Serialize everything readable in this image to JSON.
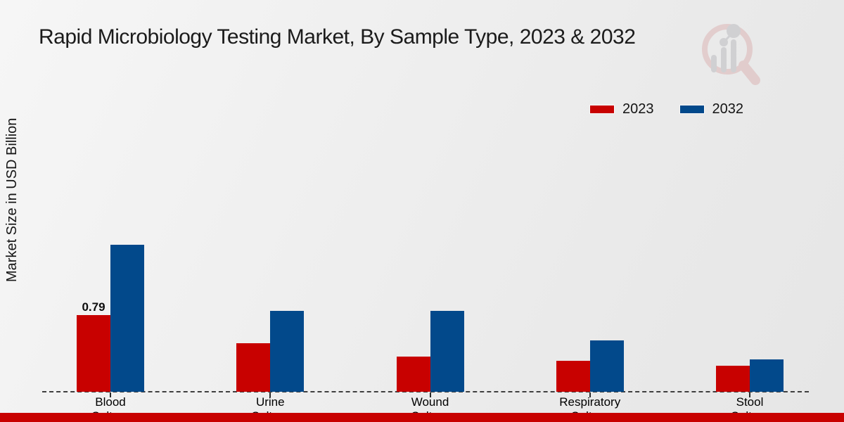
{
  "colors": {
    "series_2023": "#c80100",
    "series_2032": "#02498b",
    "bottom_strip": "#c80100",
    "baseline": "#3f3f3f"
  },
  "watermark_icon": "magnifier-bar-chart-logo",
  "chart_data": {
    "type": "bar",
    "title": "Rapid Microbiology Testing Market, By Sample Type, 2023 & 2032",
    "xlabel": "",
    "ylabel": "Market Size in USD Billion",
    "categories": [
      "Blood Culture",
      "Urine Culture",
      "Wound Culture",
      "Respiratory Culture",
      "Stool Culture"
    ],
    "category_lines": [
      [
        "Blood",
        "Culture"
      ],
      [
        "Urine",
        "Culture"
      ],
      [
        "Wound",
        "Culture"
      ],
      [
        "Respiratory",
        "Culture"
      ],
      [
        "Stool",
        "Culture"
      ]
    ],
    "series": [
      {
        "name": "2023",
        "color": "#c80100",
        "values": [
          0.79,
          0.5,
          0.36,
          0.32,
          0.27
        ]
      },
      {
        "name": "2032",
        "color": "#02498b",
        "values": [
          1.51,
          0.83,
          0.83,
          0.53,
          0.33
        ]
      }
    ],
    "annotations": [
      {
        "series": "2023",
        "category_index": 0,
        "text": "0.79"
      }
    ],
    "ylim": [
      0,
      3.3
    ],
    "grid": false,
    "y_axis_ticks_visible": false,
    "legend_position": "upper-right",
    "baseline_style": "dashed"
  }
}
